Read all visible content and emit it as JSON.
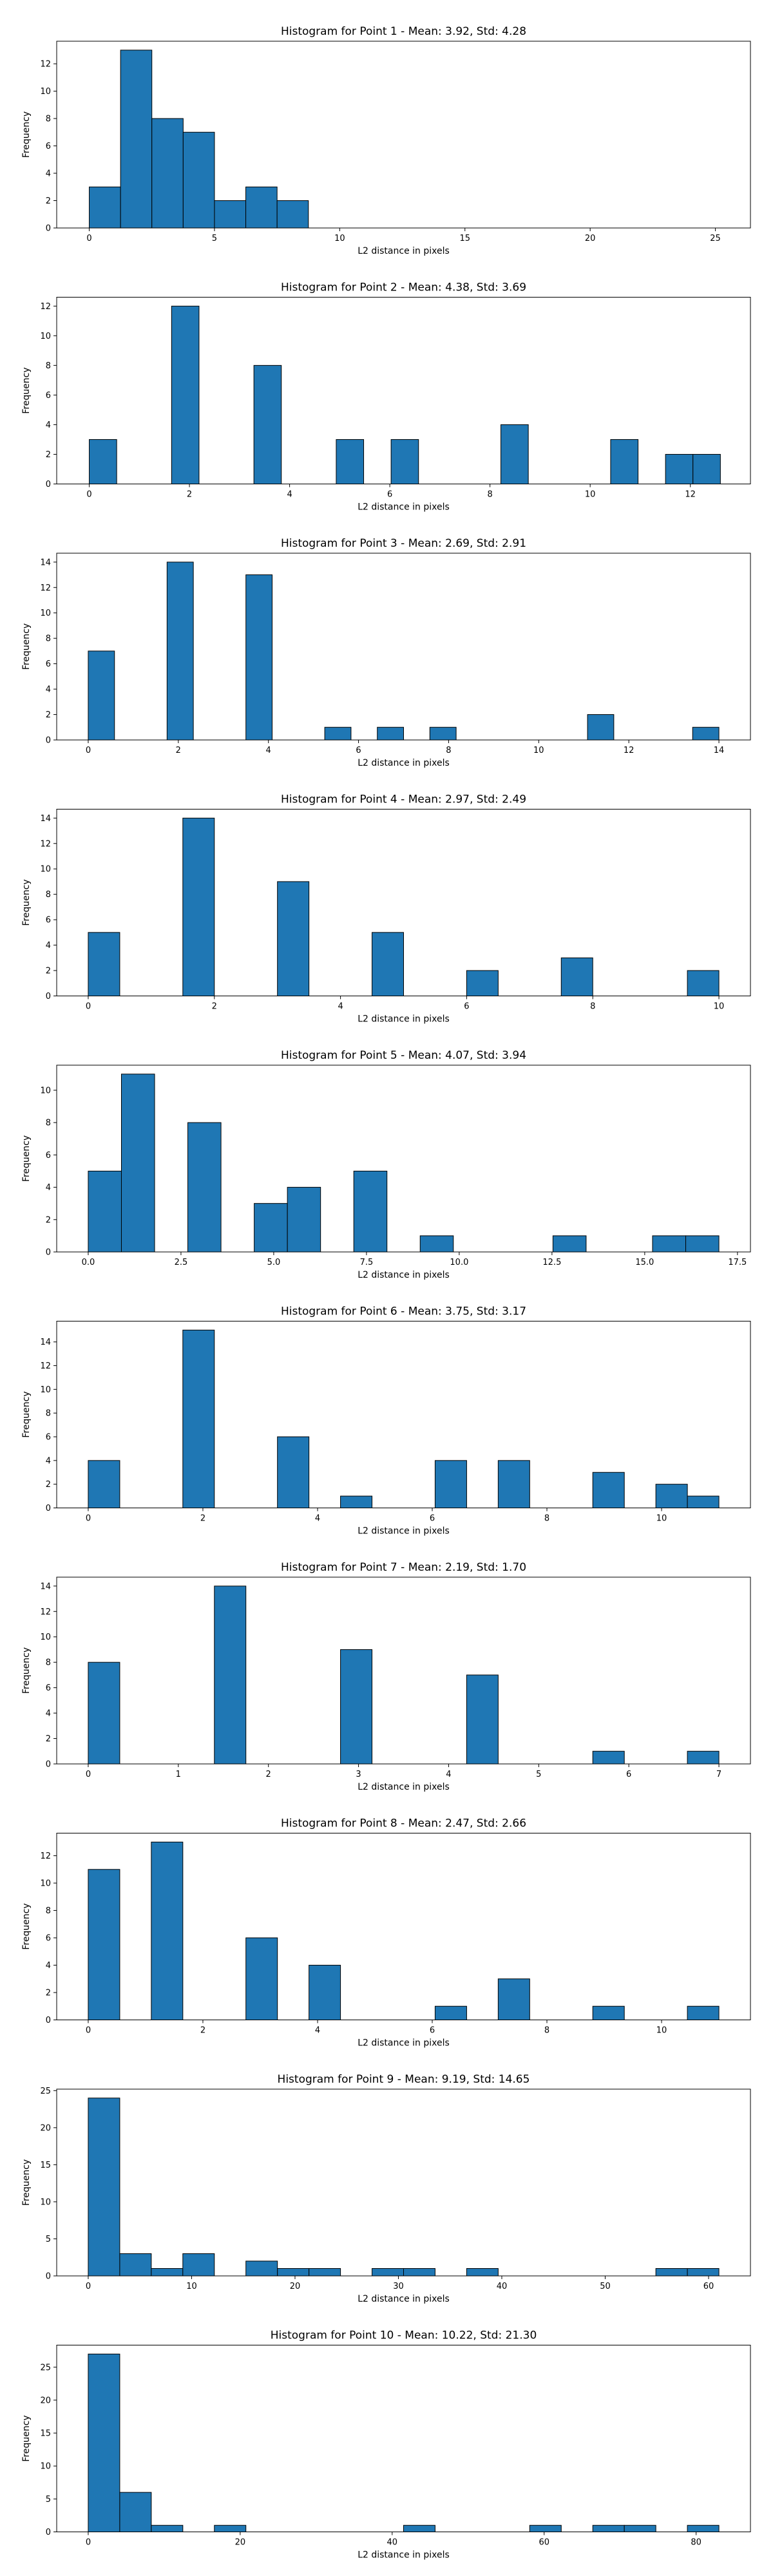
{
  "chart_data": [
    {
      "type": "bar",
      "title": "Histogram for Point 1 - Mean: 3.92, Std: 4.28",
      "xlabel": "L2 distance in pixels",
      "ylabel": "Frequency",
      "xlim": [
        -1.3,
        26.4
      ],
      "ylim": [
        0,
        13.65
      ],
      "xticks": [
        0,
        5,
        10,
        15,
        20,
        25
      ],
      "yticks": [
        0,
        2,
        4,
        6,
        8,
        10,
        12
      ],
      "bin_range": [
        0.0,
        25.0
      ],
      "counts": [
        3,
        13,
        8,
        7,
        2,
        3,
        2,
        0,
        0,
        0,
        0,
        0,
        0,
        0,
        0,
        0,
        0,
        0,
        0,
        0
      ]
    },
    {
      "type": "bar",
      "title": "Histogram for Point 2 - Mean: 4.38, Std: 3.69",
      "xlabel": "L2 distance in pixels",
      "ylabel": "Frequency",
      "xlim": [
        -0.65,
        13.2
      ],
      "ylim": [
        0,
        12.6
      ],
      "xticks": [
        0,
        2,
        4,
        6,
        8,
        10,
        12
      ],
      "yticks": [
        0,
        2,
        4,
        6,
        8,
        10,
        12
      ],
      "bin_range": [
        0.0,
        12.6
      ],
      "counts": [
        3,
        0,
        0,
        12,
        0,
        0,
        8,
        0,
        0,
        3,
        0,
        3,
        0,
        0,
        0,
        4,
        0,
        0,
        0,
        3,
        0,
        2,
        2
      ]
    },
    {
      "type": "bar",
      "title": "Histogram for Point 3 - Mean: 2.69, Std: 2.91",
      "xlabel": "L2 distance in pixels",
      "ylabel": "Frequency",
      "xlim": [
        -0.7,
        14.7
      ],
      "ylim": [
        0,
        14.7
      ],
      "xticks": [
        0,
        2,
        4,
        6,
        8,
        10,
        12,
        14
      ],
      "yticks": [
        0,
        2,
        4,
        6,
        8,
        10,
        12,
        14
      ],
      "bin_range": [
        0.0,
        14.0
      ],
      "counts": [
        7,
        0,
        0,
        14,
        0,
        0,
        13,
        0,
        0,
        1,
        0,
        1,
        0,
        1,
        0,
        0,
        0,
        0,
        0,
        2,
        0,
        0,
        0,
        1
      ]
    },
    {
      "type": "bar",
      "title": "Histogram for Point 4 - Mean: 2.97, Std: 2.49",
      "xlabel": "L2 distance in pixels",
      "ylabel": "Frequency",
      "xlim": [
        -0.5,
        10.5
      ],
      "ylim": [
        0,
        14.7
      ],
      "xticks": [
        0,
        2,
        4,
        6,
        8,
        10
      ],
      "yticks": [
        0,
        2,
        4,
        6,
        8,
        10,
        12,
        14
      ],
      "bin_range": [
        0.0,
        10.0
      ],
      "counts": [
        5,
        0,
        0,
        14,
        0,
        0,
        9,
        0,
        0,
        5,
        0,
        0,
        2,
        0,
        0,
        3,
        0,
        0,
        0,
        2
      ]
    },
    {
      "type": "bar",
      "title": "Histogram for Point 5 - Mean: 4.07, Std: 3.94",
      "xlabel": "L2 distance in pixels",
      "ylabel": "Frequency",
      "xlim": [
        -0.85,
        17.85
      ],
      "ylim": [
        0,
        11.55
      ],
      "xticks": [
        0.0,
        2.5,
        5.0,
        7.5,
        10.0,
        12.5,
        15.0,
        17.5
      ],
      "xtick_labels": [
        "0.0",
        "2.5",
        "5.0",
        "7.5",
        "10.0",
        "12.5",
        "15.0",
        "17.5"
      ],
      "yticks": [
        0,
        2,
        4,
        6,
        8,
        10
      ],
      "bin_range": [
        0.0,
        17.0
      ],
      "counts": [
        5,
        11,
        0,
        8,
        0,
        3,
        4,
        0,
        5,
        0,
        1,
        0,
        0,
        0,
        1,
        0,
        0,
        1,
        1
      ]
    },
    {
      "type": "bar",
      "title": "Histogram for Point 6 - Mean: 3.75, Std: 3.17",
      "xlabel": "L2 distance in pixels",
      "ylabel": "Frequency",
      "xlim": [
        -0.55,
        11.55
      ],
      "ylim": [
        0,
        15.75
      ],
      "xticks": [
        0,
        2,
        4,
        6,
        8,
        10
      ],
      "yticks": [
        0,
        2,
        4,
        6,
        8,
        10,
        12,
        14
      ],
      "bin_range": [
        0.0,
        11.0
      ],
      "counts": [
        4,
        0,
        0,
        15,
        0,
        0,
        6,
        0,
        1,
        0,
        0,
        4,
        0,
        4,
        0,
        0,
        3,
        0,
        2,
        1
      ]
    },
    {
      "type": "bar",
      "title": "Histogram for Point 7 - Mean: 2.19, Std: 1.70",
      "xlabel": "L2 distance in pixels",
      "ylabel": "Frequency",
      "xlim": [
        -0.35,
        7.35
      ],
      "ylim": [
        0,
        14.7
      ],
      "xticks": [
        0,
        1,
        2,
        3,
        4,
        5,
        6,
        7
      ],
      "yticks": [
        0,
        2,
        4,
        6,
        8,
        10,
        12,
        14
      ],
      "bin_range": [
        0.0,
        7.0
      ],
      "counts": [
        8,
        0,
        0,
        0,
        14,
        0,
        0,
        0,
        9,
        0,
        0,
        0,
        7,
        0,
        0,
        0,
        1,
        0,
        0,
        1
      ]
    },
    {
      "type": "bar",
      "title": "Histogram for Point 8 - Mean: 2.47, Std: 2.66",
      "xlabel": "L2 distance in pixels",
      "ylabel": "Frequency",
      "xlim": [
        -0.55,
        11.55
      ],
      "ylim": [
        0,
        13.65
      ],
      "xticks": [
        0,
        2,
        4,
        6,
        8,
        10
      ],
      "yticks": [
        0,
        2,
        4,
        6,
        8,
        10,
        12
      ],
      "bin_range": [
        0.0,
        11.0
      ],
      "counts": [
        11,
        0,
        13,
        0,
        0,
        6,
        0,
        4,
        0,
        0,
        0,
        1,
        0,
        3,
        0,
        0,
        1,
        0,
        0,
        1
      ]
    },
    {
      "type": "bar",
      "title": "Histogram for Point 9 - Mean: 9.19, Std: 14.65",
      "xlabel": "L2 distance in pixels",
      "ylabel": "Frequency",
      "xlim": [
        -3.05,
        64.05
      ],
      "ylim": [
        0,
        25.2
      ],
      "xticks": [
        0,
        10,
        20,
        30,
        40,
        50,
        60
      ],
      "yticks": [
        0,
        5,
        10,
        15,
        20,
        25
      ],
      "bin_range": [
        0.0,
        61.0
      ],
      "counts": [
        24,
        3,
        1,
        3,
        0,
        2,
        1,
        1,
        0,
        1,
        1,
        0,
        1,
        0,
        0,
        0,
        0,
        0,
        1,
        1
      ]
    },
    {
      "type": "bar",
      "title": "Histogram for Point 10 - Mean: 10.22, Std: 21.30",
      "xlabel": "L2 distance in pixels",
      "ylabel": "Frequency",
      "xlim": [
        -4.15,
        87.15
      ],
      "ylim": [
        0,
        28.35
      ],
      "xticks": [
        0,
        20,
        40,
        60,
        80
      ],
      "yticks": [
        0,
        5,
        10,
        15,
        20,
        25
      ],
      "bin_range": [
        0.0,
        83.0
      ],
      "counts": [
        27,
        6,
        1,
        0,
        1,
        0,
        0,
        0,
        0,
        0,
        1,
        0,
        0,
        0,
        1,
        0,
        1,
        1,
        0,
        1
      ]
    }
  ]
}
